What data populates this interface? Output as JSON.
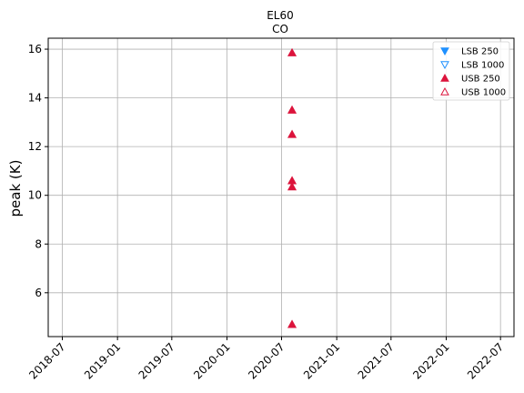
{
  "chart_data": {
    "type": "scatter",
    "title": [
      "EL60",
      "CO"
    ],
    "xlabel": "",
    "ylabel": "peak (K)",
    "x_ticks": [
      "2018-07",
      "2019-01",
      "2019-07",
      "2020-01",
      "2020-07",
      "2021-01",
      "2021-07",
      "2022-01",
      "2022-07"
    ],
    "x_tick_dates": [
      "2018-07-01",
      "2019-01-01",
      "2019-07-01",
      "2020-01-01",
      "2020-07-01",
      "2021-01-01",
      "2021-07-01",
      "2022-01-01",
      "2022-07-01"
    ],
    "xlim": [
      "2018-05-15",
      "2022-08-15"
    ],
    "y_ticks": [
      6,
      8,
      10,
      12,
      14,
      16
    ],
    "ylim": [
      4.2,
      16.45
    ],
    "grid": true,
    "legend_position": "top-right",
    "series": [
      {
        "name": "LSB 250",
        "marker": "triangle-down",
        "filled": true,
        "color": "#1e90ff",
        "points": []
      },
      {
        "name": "LSB 1000",
        "marker": "triangle-down",
        "filled": false,
        "color": "#1e90ff",
        "points": []
      },
      {
        "name": "USB 250",
        "marker": "triangle-up",
        "filled": true,
        "color": "#dc143c",
        "points": [
          {
            "x": "2020-08-05",
            "y": 15.85
          },
          {
            "x": "2020-08-05",
            "y": 13.5
          },
          {
            "x": "2020-08-05",
            "y": 12.5
          },
          {
            "x": "2020-08-05",
            "y": 10.6
          },
          {
            "x": "2020-08-05",
            "y": 10.35
          },
          {
            "x": "2020-08-05",
            "y": 4.7
          }
        ]
      },
      {
        "name": "USB 1000",
        "marker": "triangle-up",
        "filled": false,
        "color": "#dc143c",
        "points": []
      }
    ]
  }
}
